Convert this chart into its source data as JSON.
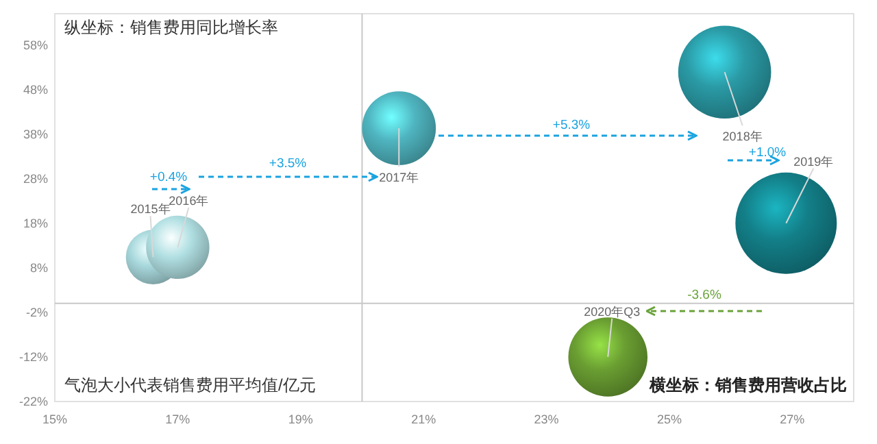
{
  "chart_data": {
    "type": "bubble",
    "xlabel": "横坐标：销售费用营收占比",
    "ylabel": "纵坐标：销售费用同比增长率",
    "x": [
      16.6,
      17.0,
      20.6,
      25.9,
      26.9,
      24.0
    ],
    "values": [
      10.4,
      12.6,
      39.3,
      51.9,
      18.0,
      -12.0
    ],
    "sizes": [
      0.29,
      0.39,
      0.53,
      0.84,
      1,
      0.61
    ],
    "colors": [
      "#a8d8dc",
      "#b0dfe2",
      "#4fb5c0",
      "#2a9aa5",
      "#137f88",
      "#6a9e32"
    ],
    "xlim": [
      15,
      28
    ],
    "ylim": [
      -22,
      65
    ],
    "xticks": [
      {
        "value": 15,
        "label": "15%"
      },
      {
        "value": 17,
        "label": "17%"
      },
      {
        "value": 19,
        "label": "19%"
      },
      {
        "value": 21,
        "label": "21%"
      },
      {
        "value": 23,
        "label": "23%"
      },
      {
        "value": 25,
        "label": "25%"
      },
      {
        "value": 27,
        "label": "27%"
      }
    ],
    "yticks": [
      {
        "value": -22,
        "label": "-22%"
      },
      {
        "value": -12,
        "label": "-12%"
      },
      {
        "value": -2,
        "label": "-2%"
      },
      {
        "value": 8,
        "label": "8%"
      },
      {
        "value": 18,
        "label": "18%"
      },
      {
        "value": 28,
        "label": "28%"
      },
      {
        "value": 38,
        "label": "38%"
      },
      {
        "value": 48,
        "label": "48%"
      },
      {
        "value": 58,
        "label": "58%"
      }
    ],
    "ref_lines": [
      {
        "axis": "x",
        "value": 20,
        "color": "#c8c8c8"
      },
      {
        "axis": "y",
        "value": 0,
        "color": "#c8c8c8"
      }
    ],
    "annotations": [
      {
        "text": "2015年",
        "x": 16.6,
        "y": 10.4
      },
      {
        "text": "2016年",
        "x": 17.0,
        "y": 12.6
      },
      {
        "text": "2017年",
        "x": 20.6,
        "y": 39.3
      },
      {
        "text": "2018年",
        "x": 25.9,
        "y": 51.9
      },
      {
        "text": "2019年",
        "x": 26.9,
        "y": 18.0
      },
      {
        "text": "2020年Q3",
        "x": 24.0,
        "y": -12.0
      },
      "+0.4%",
      "+3.5%",
      "+5.3%",
      "+1.0%",
      "-3.6%",
      "气泡大小代表销售费用平均值/亿元"
    ]
  }
}
